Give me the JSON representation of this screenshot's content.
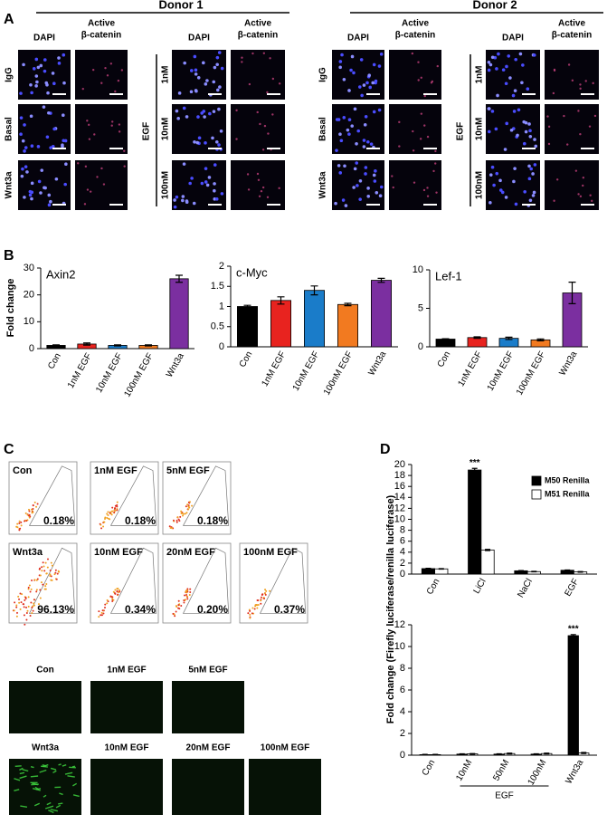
{
  "panel_labels": [
    "A",
    "B",
    "C",
    "D"
  ],
  "panel_a": {
    "donors": [
      "Donor 1",
      "Donor 2"
    ],
    "dapi": "DAPI",
    "active": [
      "Active",
      "β-catenin"
    ],
    "rows": [
      "IgG",
      "Basal",
      "Wnt3a"
    ],
    "egf": "EGF",
    "egf_doses": [
      "1nM",
      "10nM",
      "100nM"
    ]
  },
  "panel_c": {
    "flow": [
      {
        "label": "Con",
        "percent": "0.18%"
      },
      {
        "label": "1nM EGF",
        "percent": "0.18%"
      },
      {
        "label": "5nM EGF",
        "percent": "0.18%"
      },
      {
        "label": "Wnt3a",
        "percent": "96.13%"
      },
      {
        "label": "10nM EGF",
        "percent": "0.34%"
      },
      {
        "label": "20nM EGF",
        "percent": "0.20%"
      },
      {
        "label": "100nM EGF",
        "percent": "0.37%"
      }
    ],
    "fluorescence_labels": [
      "Con",
      "1nM EGF",
      "5nM EGF",
      "Wnt3a",
      "10nM EGF",
      "20nM EGF",
      "100nM EGF"
    ]
  },
  "chart_data": [
    {
      "type": "bar",
      "title": "Axin2",
      "y_label": "Fold change",
      "categories": [
        "Con",
        "1nM EGF",
        "10nM EGF",
        "100nM EGF",
        "Wnt3a"
      ],
      "values": [
        1.2,
        1.7,
        1.2,
        1.2,
        26
      ],
      "errors": [
        0.2,
        0.4,
        0.2,
        0.2,
        1.3
      ],
      "colors": [
        "#000000",
        "#e8231f",
        "#1a7cc9",
        "#f27a20",
        "#7b2fa0"
      ],
      "ylim": [
        0,
        30
      ],
      "yticks": [
        0,
        10,
        20,
        30
      ]
    },
    {
      "type": "bar",
      "title": "c-Myc",
      "categories": [
        "Con",
        "1nM EGF",
        "10nM EGF",
        "100nM EGF",
        "Wnt3a"
      ],
      "values": [
        1.0,
        1.15,
        1.4,
        1.05,
        1.65
      ],
      "errors": [
        0.03,
        0.09,
        0.11,
        0.03,
        0.05
      ],
      "colors": [
        "#000000",
        "#e8231f",
        "#1a7cc9",
        "#f27a20",
        "#7b2fa0"
      ],
      "ylim": [
        0,
        2
      ],
      "yticks": [
        0,
        0.5,
        1,
        1.5,
        2
      ]
    },
    {
      "type": "bar",
      "title": "Lef-1",
      "categories": [
        "Con",
        "1nM EGF",
        "10nM EGF",
        "100nM EGF",
        "Wnt3a"
      ],
      "values": [
        1.0,
        1.2,
        1.1,
        0.9,
        7.0
      ],
      "errors": [
        0.05,
        0.1,
        0.15,
        0.12,
        1.4
      ],
      "colors": [
        "#000000",
        "#e8231f",
        "#1a7cc9",
        "#f27a20",
        "#7b2fa0"
      ],
      "ylim": [
        0,
        10
      ],
      "yticks": [
        0,
        5,
        10
      ]
    },
    {
      "type": "bar",
      "y_label": "Fold change (Firefly luciferase/renilla luciferase)",
      "categories": [
        "Con",
        "LiCl",
        "NaCl",
        "EGF"
      ],
      "series": [
        {
          "name": "M50 Renilla",
          "color": "#000000",
          "values": [
            1.0,
            19.0,
            0.6,
            0.7
          ],
          "errors": [
            0.05,
            0.3,
            0.05,
            0.05
          ]
        },
        {
          "name": "M51 Renilla",
          "color": "#ffffff",
          "values": [
            0.95,
            4.4,
            0.45,
            0.4
          ],
          "errors": [
            0.05,
            0.1,
            0.05,
            0.05
          ]
        }
      ],
      "ylim": [
        0,
        20
      ],
      "yticks": [
        0,
        2,
        4,
        6,
        8,
        10,
        12,
        14,
        16,
        18,
        20
      ],
      "legend": "upper right",
      "annotations": [
        {
          "text": "***",
          "category": "LiCl"
        }
      ]
    },
    {
      "type": "bar",
      "categories": [
        "Con",
        "10nM",
        "50nM",
        "100nM",
        "Wnt3a"
      ],
      "series": [
        {
          "color": "#000000",
          "values": [
            0.05,
            0.1,
            0.1,
            0.1,
            11.0
          ],
          "errors": [
            0.02,
            0.03,
            0.03,
            0.03,
            0.1
          ]
        },
        {
          "color": "#ffffff",
          "values": [
            0.05,
            0.12,
            0.15,
            0.15,
            0.2
          ],
          "errors": [
            0.02,
            0.03,
            0.04,
            0.04,
            0.05
          ]
        }
      ],
      "ylim": [
        0,
        12
      ],
      "yticks": [
        0,
        2,
        4,
        6,
        8,
        10,
        12
      ],
      "annotations": [
        {
          "text": "***",
          "category": "Wnt3a"
        }
      ],
      "group_labels": [
        {
          "text": "EGF",
          "from": "10nM",
          "to": "100nM"
        }
      ]
    }
  ]
}
